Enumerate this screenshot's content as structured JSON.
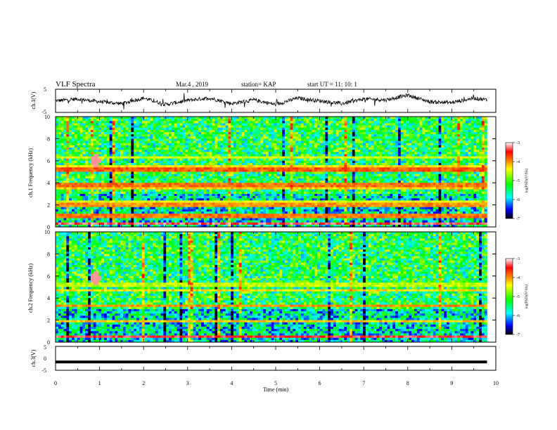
{
  "header": {
    "title": "VLF Spectra",
    "date": "Mar.4 , 2019",
    "station": "station= KAP",
    "start": "start UT = 11: 10: 1"
  },
  "colorbar": {
    "label": "log(PSD)(V²/Hz)",
    "ticks": [
      "-3",
      "-4",
      "-5",
      "-6",
      "-7"
    ],
    "colors": [
      "#ffffff",
      "#ff0000",
      "#ffff00",
      "#00ff00",
      "#00ffff",
      "#0000ff",
      "#000000"
    ]
  },
  "chart_data": [
    {
      "type": "line",
      "name": "ch1-waveform",
      "ylabel": "ch.1(V)",
      "ylim": [
        -5,
        5
      ],
      "yticks": [
        "5",
        "-5"
      ],
      "xlim": [
        0,
        10
      ],
      "x": [
        0,
        0.5,
        1,
        1.5,
        2,
        2.5,
        3,
        3.5,
        4,
        4.5,
        5,
        5.5,
        6,
        6.5,
        7,
        7.5,
        8,
        8.5,
        9,
        9.5,
        9.8
      ],
      "y": [
        0,
        0.8,
        -0.4,
        -1.2,
        1.2,
        -1.6,
        0.2,
        1.2,
        -1.2,
        0.4,
        -1.6,
        1.2,
        0,
        -1.2,
        0.8,
        0.4,
        2.4,
        -0.4,
        -0.8,
        1.2,
        0.4
      ]
    },
    {
      "type": "heatmap",
      "name": "ch1-spectrogram",
      "ylabel": "ch.1 Frequency (kHz)",
      "ylim": [
        0,
        10
      ],
      "yticks": [
        "0",
        "2",
        "4",
        "6",
        "8",
        "10"
      ],
      "xlim": [
        0,
        9.8
      ],
      "zlim": [
        -7,
        -3
      ],
      "bands_khz": [
        {
          "f": 0.3,
          "level": -3.3
        },
        {
          "f": 1.0,
          "level": -3.9
        },
        {
          "f": 2.0,
          "level": -4.0
        },
        {
          "f": 2.2,
          "level": -4.5
        },
        {
          "f": 3.5,
          "level": -4.2
        },
        {
          "f": 3.8,
          "level": -3.9
        },
        {
          "f": 5.2,
          "level": -3.8
        },
        {
          "f": 5.5,
          "level": -4.3
        },
        {
          "f": 6.3,
          "level": -4.5
        }
      ],
      "hotspot": {
        "t_min": 0.9,
        "f_khz": 6.0,
        "level": -3.2
      }
    },
    {
      "type": "heatmap",
      "name": "ch2-spectrogram",
      "ylabel": "ch.2 Frequency (kHz)",
      "ylim": [
        0,
        10
      ],
      "yticks": [
        "0",
        "2",
        "4",
        "6",
        "8",
        "10"
      ],
      "xlim": [
        0,
        9.8
      ],
      "zlim": [
        -7,
        -3
      ],
      "bands_khz": [
        {
          "f": 0.5,
          "level": -3.4
        },
        {
          "f": 1.9,
          "level": -4.2
        },
        {
          "f": 3.3,
          "level": -4.0
        },
        {
          "f": 4.7,
          "level": -4.3
        },
        {
          "f": 5.2,
          "level": -4.6
        }
      ],
      "hotspot": {
        "t_min": 0.9,
        "f_khz": 5.8,
        "level": -3.2
      }
    },
    {
      "type": "line",
      "name": "ch3-waveform",
      "ylabel": "ch.3(V)",
      "ylim": [
        -5,
        5
      ],
      "yticks": [
        "5",
        "0",
        "-5"
      ],
      "xlim": [
        0,
        10
      ],
      "x": [
        0,
        9.8
      ],
      "y": [
        -1.5,
        -1.5
      ]
    }
  ],
  "xaxis": {
    "label": "Time (min)",
    "ticks": [
      "0",
      "1",
      "2",
      "3",
      "4",
      "5",
      "6",
      "7",
      "8",
      "9",
      "10"
    ]
  }
}
